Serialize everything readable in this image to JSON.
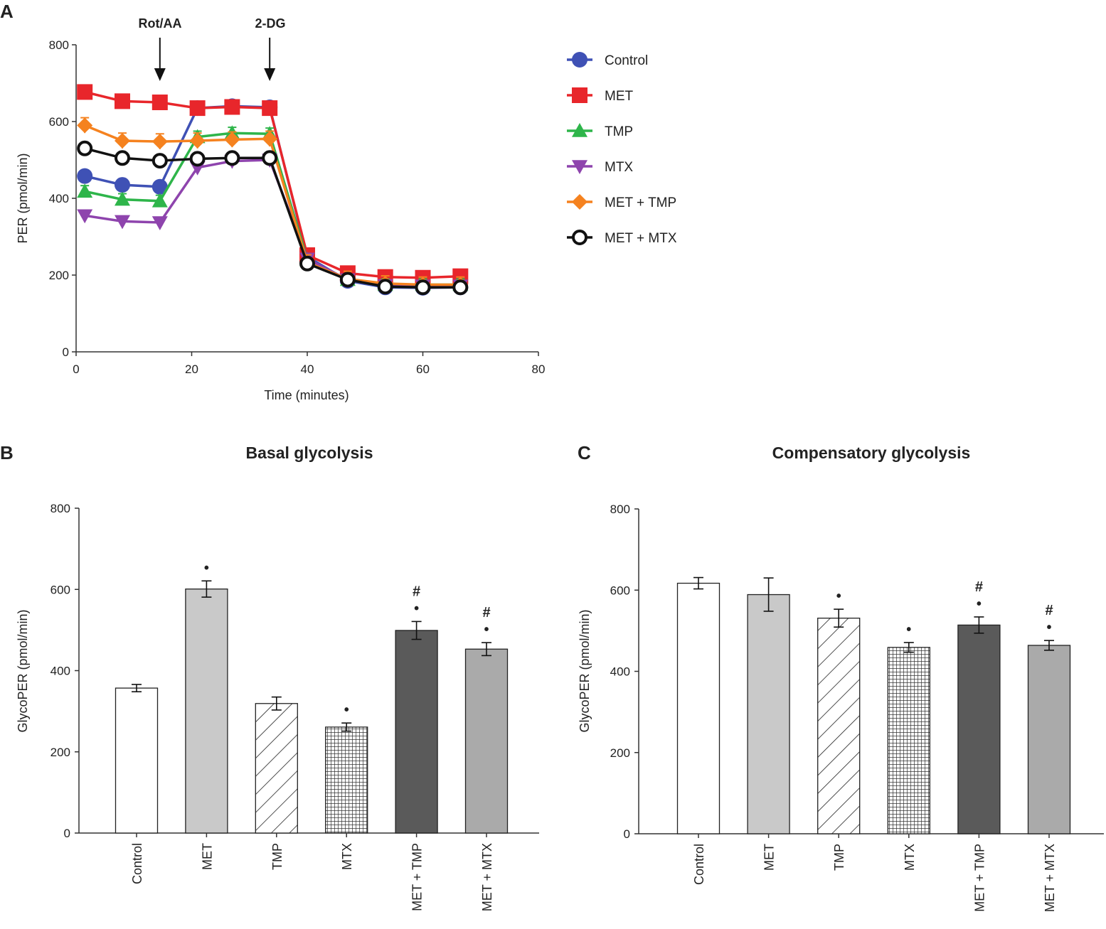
{
  "panel_letters": [
    "A",
    "B",
    "C"
  ],
  "colors": {
    "Control": "#3f51b5",
    "MET": "#e8262b",
    "TMP": "#2eb54a",
    "MTX": "#8e44ad",
    "MET + TMP": "#f5821f",
    "MET + MTX": "#111111",
    "axis": "#333333"
  },
  "chart_data": [
    {
      "id": "A",
      "type": "line",
      "title": "",
      "xlabel": "Time (minutes)",
      "ylabel": "PER (pmol/min)",
      "xlim": [
        0,
        80
      ],
      "ylim": [
        0,
        800
      ],
      "xticks": [
        0,
        20,
        40,
        60,
        80
      ],
      "yticks": [
        0,
        200,
        400,
        600,
        800
      ],
      "annotations": [
        {
          "label": "Rot/AA",
          "x": 14.5
        },
        {
          "label": "2-DG",
          "x": 33.5
        }
      ],
      "x": [
        1.5,
        8,
        14.5,
        21,
        27,
        33.5,
        40,
        47,
        53.5,
        60,
        66.5
      ],
      "series": [
        {
          "name": "Control",
          "marker": "circle",
          "values": [
            458,
            435,
            430,
            635,
            640,
            637,
            248,
            185,
            168,
            167,
            168
          ],
          "err": 15
        },
        {
          "name": "MET",
          "marker": "square",
          "values": [
            677,
            653,
            650,
            635,
            638,
            635,
            252,
            205,
            195,
            193,
            197
          ],
          "err": 15
        },
        {
          "name": "TMP",
          "marker": "triangle-up",
          "values": [
            418,
            397,
            393,
            560,
            570,
            568,
            240,
            188,
            175,
            175,
            175
          ],
          "err": 15
        },
        {
          "name": "MTX",
          "marker": "triangle-down",
          "values": [
            355,
            340,
            337,
            480,
            497,
            500,
            242,
            188,
            173,
            172,
            172
          ],
          "err": 10
        },
        {
          "name": "MET + TMP",
          "marker": "diamond",
          "values": [
            590,
            550,
            548,
            550,
            553,
            555,
            233,
            190,
            178,
            175,
            175
          ],
          "err": 20
        },
        {
          "name": "MET + MTX",
          "marker": "open-circle",
          "values": [
            530,
            505,
            498,
            503,
            505,
            505,
            230,
            188,
            170,
            168,
            168
          ],
          "err": 8
        }
      ]
    },
    {
      "id": "B",
      "type": "bar",
      "title": "Basal glycolysis",
      "xlabel": "",
      "ylabel": "GlycoPER (pmol/min)",
      "ylim": [
        0,
        800
      ],
      "yticks": [
        0,
        200,
        400,
        600,
        800
      ],
      "categories": [
        "Control",
        "MET",
        "TMP",
        "MTX",
        "MET + TMP",
        "MET + MTX"
      ],
      "values": [
        357,
        601,
        319,
        261,
        499,
        453
      ],
      "errors": [
        9,
        20,
        16,
        10,
        22,
        16
      ],
      "significance": [
        "",
        "•",
        "",
        "•",
        "#\n•",
        "#\n•"
      ]
    },
    {
      "id": "C",
      "type": "bar",
      "title": "Compensatory glycolysis",
      "xlabel": "",
      "ylabel": "GlycoPER (pmol/min)",
      "ylim": [
        0,
        800
      ],
      "yticks": [
        0,
        200,
        400,
        600,
        800
      ],
      "categories": [
        "Control",
        "MET",
        "TMP",
        "MTX",
        "MET + TMP",
        "MET + MTX"
      ],
      "values": [
        617,
        589,
        531,
        459,
        514,
        464
      ],
      "errors": [
        14,
        41,
        22,
        12,
        20,
        12
      ],
      "significance": [
        "",
        "",
        "•",
        "•",
        "#\n•",
        "#\n•"
      ]
    }
  ]
}
